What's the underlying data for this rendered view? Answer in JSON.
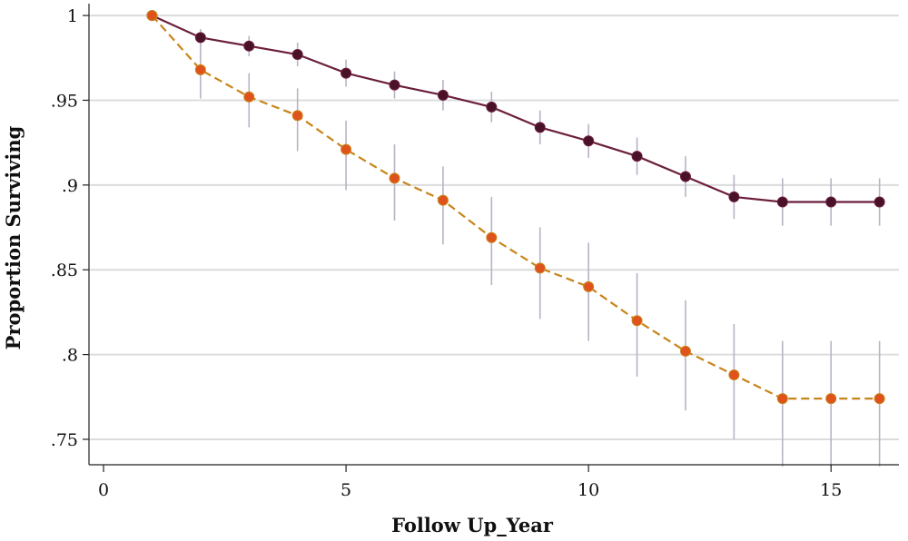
{
  "chart_data": {
    "type": "line",
    "title": "",
    "xlabel": "Follow Up_Year",
    "ylabel": "Proportion Surviving",
    "xlim": [
      -0.3,
      16.4
    ],
    "ylim": [
      0.735,
      1.007
    ],
    "x_ticks": [
      0,
      5,
      10,
      15
    ],
    "x_tick_labels": [
      "0",
      "5",
      "10",
      "15"
    ],
    "y_ticks": [
      1.0,
      0.95,
      0.9,
      0.85,
      0.8,
      0.75
    ],
    "y_tick_labels": [
      "1",
      ".95",
      ".9",
      ".85",
      ".8",
      ".75"
    ],
    "grid": true,
    "x": [
      1,
      2,
      3,
      4,
      5,
      6,
      7,
      8,
      9,
      10,
      11,
      12,
      13,
      14,
      15,
      16
    ],
    "series": [
      {
        "color": "#6b1f3d",
        "marker_color": "#4a1228",
        "line_style": "solid",
        "values": [
          1.0,
          0.987,
          0.982,
          0.977,
          0.966,
          0.959,
          0.953,
          0.946,
          0.934,
          0.926,
          0.917,
          0.905,
          0.893,
          0.89,
          0.89,
          0.89
        ],
        "ci_lower": [
          1.0,
          0.982,
          0.976,
          0.97,
          0.958,
          0.951,
          0.944,
          0.937,
          0.924,
          0.916,
          0.906,
          0.893,
          0.88,
          0.876,
          0.876,
          0.876
        ],
        "ci_upper": [
          1.0,
          0.992,
          0.988,
          0.984,
          0.974,
          0.967,
          0.962,
          0.955,
          0.944,
          0.936,
          0.928,
          0.917,
          0.906,
          0.904,
          0.904,
          0.904
        ]
      },
      {
        "color": "#c8841a",
        "marker_color": "#e0521c",
        "line_style": "dashed",
        "values": [
          1.0,
          0.968,
          0.952,
          0.941,
          0.921,
          0.904,
          0.891,
          0.869,
          0.851,
          0.84,
          0.82,
          0.802,
          0.788,
          0.774,
          0.774,
          0.774
        ],
        "ci_lower": [
          1.0,
          0.951,
          0.934,
          0.92,
          0.897,
          0.879,
          0.865,
          0.841,
          0.821,
          0.808,
          0.787,
          0.767,
          0.75,
          0.734,
          0.734,
          0.734
        ],
        "ci_upper": [
          1.0,
          0.983,
          0.966,
          0.957,
          0.938,
          0.924,
          0.911,
          0.893,
          0.875,
          0.866,
          0.848,
          0.832,
          0.818,
          0.808,
          0.808,
          0.808
        ]
      }
    ]
  }
}
